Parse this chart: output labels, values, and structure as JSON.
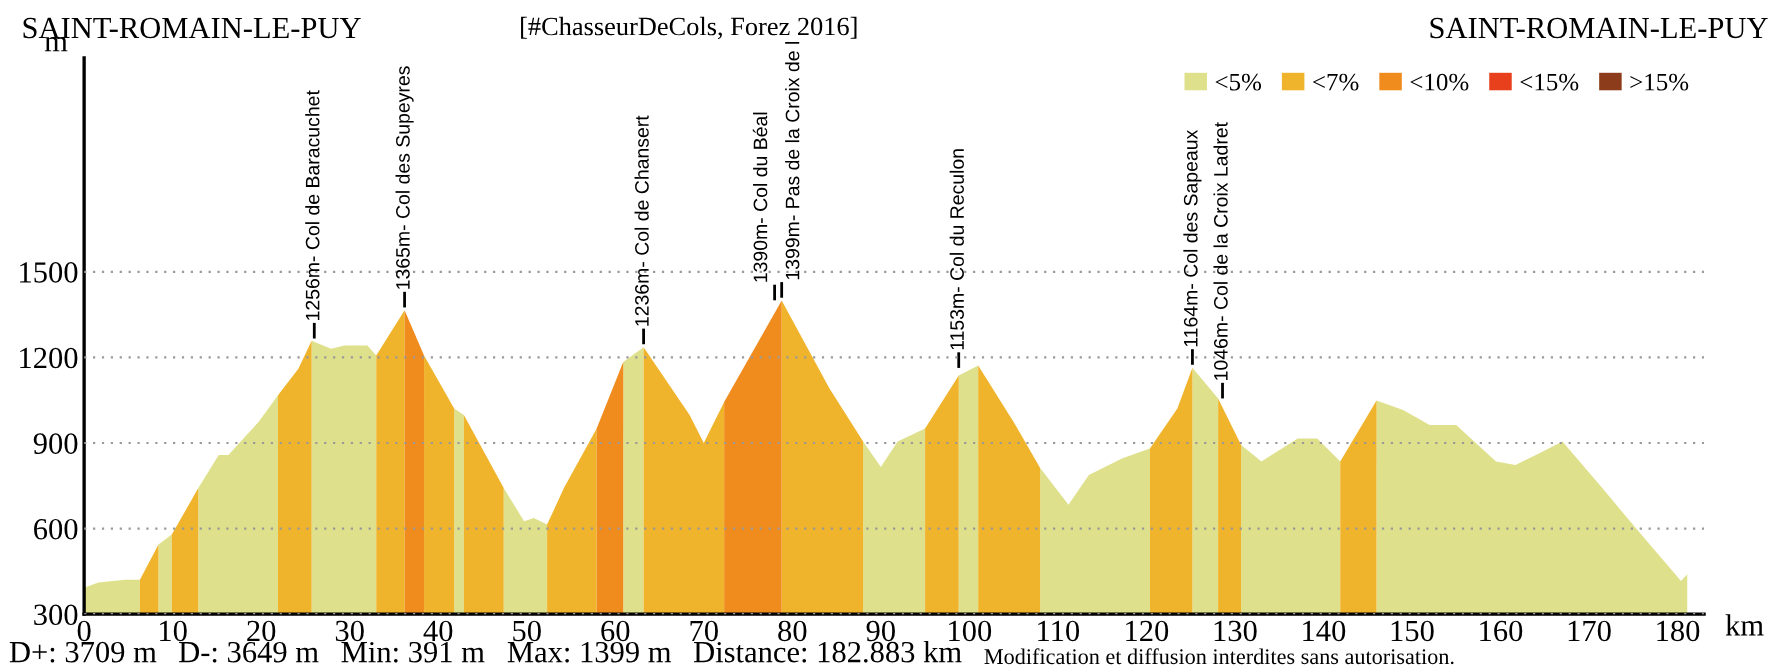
{
  "chart_data": {
    "type": "area",
    "title": "SAINT-ROMAIN-LE-PUY",
    "subtitle": "[#ChasseurDeCols, Forez 2016]",
    "xlabel": "km",
    "ylabel": "m",
    "series": [
      {
        "name": "<5%",
        "color": "#dfe08c",
        "x": [
          0,
          1.6,
          4.6,
          6.3,
          7,
          8.4,
          9.9,
          11,
          12.9,
          15.2,
          16.3,
          19.7,
          21.9,
          24,
          25.7,
          27.9,
          29.4,
          32,
          33,
          36,
          41.8,
          42.9,
          45,
          47.4,
          49.7,
          50.8,
          52.3,
          55,
          60.9,
          63.2,
          70,
          88,
          90,
          91.9,
          95,
          97,
          98.8,
          101,
          106,
          108,
          111.2,
          113.5,
          117.3,
          120.4,
          122,
          125.2,
          128.1,
          129,
          130.7,
          133,
          137.1,
          139.3,
          141.9,
          144,
          146,
          149,
          152,
          155,
          159.5,
          161.7,
          164,
          167,
          171.5,
          175.9,
          180.4,
          181.1
        ],
        "values": [
          393,
          411,
          421,
          421,
          null,
          544,
          579,
          null,
          742,
          858,
          858,
          974,
          1067,
          null,
          1258,
          1230,
          1242,
          1242,
          1207,
          null,
          1021,
          998,
          null,
          742,
          626,
          637,
          614,
          null,
          1184,
          1236,
          null,
          905,
          816,
          905,
          951,
          null,
          1137,
          1172,
          null,
          812,
          684,
          788,
          847,
          881,
          null,
          1164,
          1056,
          null,
          893,
          835,
          916,
          916,
          835,
          null,
          1049,
          1016,
          963,
          963,
          835,
          823,
          858,
          905,
          742,
          579,
          416,
          440
        ]
      },
      {
        "name": "<7%",
        "color": "#f0b42c",
        "x": [
          6.3,
          8.4,
          9,
          9.9,
          12.9,
          14,
          21.9,
          24.2,
          25.7,
          27,
          33,
          36.2,
          37,
          38.4,
          41.8,
          42,
          42.9,
          47.4,
          50,
          52.3,
          54.2,
          57.9,
          60,
          63.2,
          68.4,
          70,
          72.3,
          75,
          78.8,
          84.2,
          88,
          93,
          95,
          98.8,
          99,
          101,
          105,
          108,
          115,
          120.4,
          123.5,
          125.2,
          126,
          128.1,
          130.7,
          135,
          141.9,
          146
        ],
        "values": [
          421,
          544,
          null,
          579,
          742,
          null,
          1067,
          1160,
          1258,
          null,
          1207,
          1365,
          null,
          1207,
          1021,
          null,
          998,
          742,
          null,
          614,
          742,
          951,
          null,
          1236,
          998,
          900,
          1044,
          null,
          1399,
          1091,
          905,
          null,
          951,
          1137,
          null,
          1172,
          974,
          812,
          null,
          881,
          1021,
          1164,
          null,
          1056,
          893,
          null,
          835,
          1049
        ]
      },
      {
        "name": "<10%",
        "color": "#f08c1e",
        "x": [
          36.2,
          38.4,
          45,
          57.9,
          60.9,
          65,
          72.3,
          78.8
        ],
        "values": [
          1365,
          1207,
          null,
          951,
          1184,
          null,
          1044,
          1399
        ]
      },
      {
        "name": "<15%",
        "color": "#e8401c"
      },
      {
        "name": ">15%",
        "color": "#8c3c1a"
      }
    ],
    "xlim": [
      0,
      183
    ],
    "xticks": [
      0,
      10,
      20,
      30,
      40,
      50,
      60,
      70,
      80,
      90,
      100,
      110,
      120,
      130,
      140,
      150,
      160,
      170,
      180
    ],
    "ylim": [
      300,
      2250
    ],
    "yticks": [
      300,
      600,
      900,
      1200,
      1500
    ],
    "grid": "y",
    "legend": "top right",
    "annotations": [
      {
        "text": "1256m- Col de Baracuchet",
        "x": 26,
        "y": 1256
      },
      {
        "text": "1365m- Col des Supeyres",
        "x": 36.2,
        "y": 1365
      },
      {
        "text": "1236m- Col de Chansert",
        "x": 63.2,
        "y": 1236
      },
      {
        "text": "1390m- Col du Béal",
        "x": 78,
        "y": 1390
      },
      {
        "text": "1399m- Pas de la Croix de l",
        "x": 78.8,
        "y": 1399
      },
      {
        "text": "1153m- Col du Reculon",
        "x": 98.8,
        "y": 1153
      },
      {
        "text": "1164m- Col des Sapeaux",
        "x": 125.2,
        "y": 1164
      },
      {
        "text": "1046m- Col de la Croix Ladret",
        "x": 128.6,
        "y": 1046
      },
      "SAINT-ROMAIN-LE-PUY",
      "D+: 3709 m",
      "D-: 3649 m",
      "Min: 391 m",
      "Max: 1399 m",
      "Distance: 182.883 km",
      "Modification et diffusion interdites sans autorisation."
    ]
  }
}
